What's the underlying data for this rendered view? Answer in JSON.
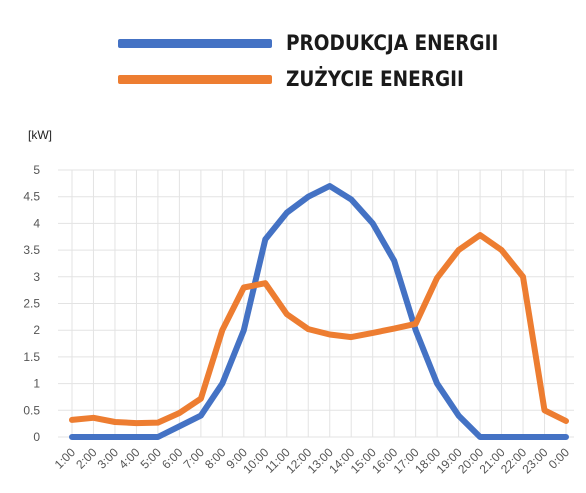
{
  "chart_data": {
    "type": "line",
    "ylabel": "[kW]",
    "ylim": [
      0,
      5
    ],
    "yticks": [
      "0",
      "0.5",
      "1",
      "1.5",
      "2",
      "2.5",
      "3",
      "3.5",
      "4",
      "4.5",
      "5"
    ],
    "grid": true,
    "legend_position": "top",
    "categories": [
      "1:00",
      "2:00",
      "3:00",
      "4:00",
      "5:00",
      "6:00",
      "7:00",
      "8:00",
      "9:00",
      "10:00",
      "11:00",
      "12:00",
      "13:00",
      "14:00",
      "15:00",
      "16:00",
      "17:00",
      "18:00",
      "19:00",
      "20:00",
      "21:00",
      "22:00",
      "23:00",
      "0:00"
    ],
    "series": [
      {
        "name": "PRODUKCJA ENERGII",
        "color": "#4472c4",
        "values": [
          0,
          0,
          0,
          0,
          0,
          0.2,
          0.4,
          1.0,
          2.0,
          3.7,
          4.2,
          4.5,
          4.7,
          4.45,
          4.0,
          3.3,
          2.0,
          1.0,
          0.4,
          0,
          0,
          0,
          0,
          0
        ]
      },
      {
        "name": "ZUŻYCIE ENERGII",
        "color": "#ed7d31",
        "values": [
          0.32,
          0.36,
          0.28,
          0.26,
          0.27,
          0.45,
          0.72,
          2.0,
          2.8,
          2.88,
          2.3,
          2.02,
          1.92,
          1.87,
          1.95,
          2.03,
          2.12,
          2.98,
          3.5,
          3.78,
          3.5,
          3.0,
          0.5,
          0.3
        ]
      }
    ]
  }
}
